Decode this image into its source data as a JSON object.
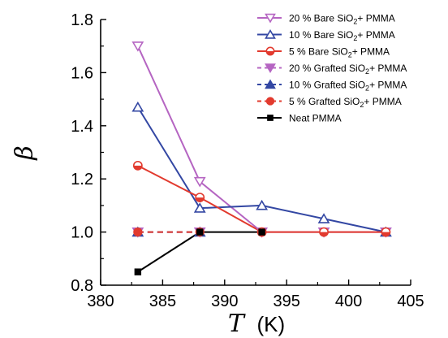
{
  "chart_data": {
    "type": "line",
    "xlabel": {
      "symbol": "T",
      "unit": "(K)"
    },
    "ylabel": "β",
    "xlim": [
      380,
      405
    ],
    "ylim": [
      0.8,
      1.8
    ],
    "xticks": [
      380,
      385,
      390,
      395,
      400,
      405
    ],
    "yticks": [
      0.8,
      1.0,
      1.2,
      1.4,
      1.6,
      1.8
    ],
    "ytick_labels": [
      "0.8",
      "1.0",
      "1.2",
      "1.4",
      "1.6",
      "1.8"
    ],
    "grid": false,
    "legend_position": "top-right",
    "series": [
      {
        "name": "20 % Bare SiO2+ PMMA",
        "label_main": "20 % Bare SiO",
        "label_sub": "2",
        "label_tail": "+ PMMA",
        "color": "#b565c2",
        "marker": "triangle-down-open",
        "line": "solid",
        "x": [
          383,
          388,
          393,
          398,
          403
        ],
        "y": [
          1.7,
          1.19,
          1.0,
          1.0,
          1.0
        ]
      },
      {
        "name": "10 % Bare SiO2+ PMMA",
        "label_main": "10 % Bare SiO",
        "label_sub": "2",
        "label_tail": "+ PMMA",
        "color": "#3347a3",
        "marker": "triangle-up-open",
        "line": "solid",
        "x": [
          383,
          388,
          393,
          398,
          403
        ],
        "y": [
          1.47,
          1.09,
          1.1,
          1.05,
          1.0
        ]
      },
      {
        "name": "5 % Bare SiO2+ PMMA",
        "label_main": "5 % Bare SiO",
        "label_sub": "2",
        "label_tail": "+ PMMA",
        "color": "#e23a2e",
        "marker": "circle-half",
        "line": "solid",
        "x": [
          383,
          388,
          393,
          398,
          403
        ],
        "y": [
          1.25,
          1.13,
          1.0,
          1.0,
          1.0
        ]
      },
      {
        "name": "20 % Grafted SiO2+ PMMA",
        "label_main": "20 % Grafted SiO",
        "label_sub": "2",
        "label_tail": "+ PMMA",
        "color": "#b565c2",
        "marker": "triangle-down-filled",
        "line": "dashed",
        "x": [
          383,
          388
        ],
        "y": [
          1.0,
          1.0
        ]
      },
      {
        "name": "10 % Grafted SiO2+ PMMA",
        "label_main": "10 % Grafted SiO",
        "label_sub": "2",
        "label_tail": "+ PMMA",
        "color": "#3347a3",
        "marker": "triangle-up-filled",
        "line": "dashed",
        "x": [
          383,
          388
        ],
        "y": [
          1.0,
          1.0
        ]
      },
      {
        "name": "5 % Grafted SiO2+ PMMA",
        "label_main": "5 % Grafted SiO",
        "label_sub": "2",
        "label_tail": "+ PMMA",
        "color": "#e23a2e",
        "marker": "circle-filled",
        "line": "dashed",
        "x": [
          383,
          388
        ],
        "y": [
          1.0,
          1.0
        ]
      },
      {
        "name": "Neat PMMA",
        "label_main": "Neat PMMA",
        "label_sub": "",
        "label_tail": "",
        "color": "#000000",
        "marker": "square-filled",
        "line": "solid",
        "x": [
          383,
          388,
          393
        ],
        "y": [
          0.85,
          1.0,
          1.0
        ]
      }
    ]
  }
}
